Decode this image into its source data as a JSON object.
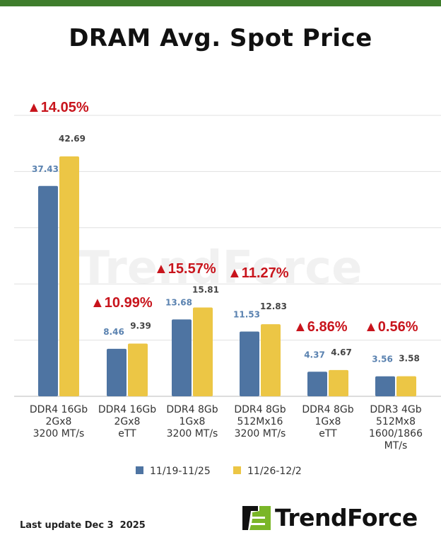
{
  "title": "DRAM Avg. Spot Price",
  "footer": "Last update Dec 3  2025",
  "brand": "TrendForce",
  "colors": {
    "series1": "#4e74a2",
    "series2": "#ecc645",
    "change": "#c8141c",
    "topbar": "#3f7d2c",
    "value1": "#5a82b0",
    "value2": "#444444"
  },
  "chart_data": {
    "type": "bar",
    "categories": [
      [
        "DDR4 16Gb",
        "2Gx8",
        "3200 MT/s"
      ],
      [
        "DDR4 16Gb",
        "2Gx8",
        "eTT"
      ],
      [
        "DDR4 8Gb",
        "1Gx8",
        "3200 MT/s"
      ],
      [
        "DDR4 8Gb",
        "512Mx16",
        "3200 MT/s"
      ],
      [
        "DDR4 8Gb",
        "1Gx8",
        "eTT"
      ],
      [
        "DDR3 4Gb",
        "512Mx8",
        "1600/1866",
        "MT/s"
      ]
    ],
    "series": [
      {
        "name": "11/19-11/25",
        "values": [
          37.43,
          8.46,
          13.68,
          11.53,
          4.37,
          3.56
        ],
        "labels": [
          "37.43",
          "8.46",
          "13.68",
          "11.53",
          "4.37",
          "3.56"
        ]
      },
      {
        "name": "11/26-12/2",
        "values": [
          42.69,
          9.39,
          15.81,
          12.83,
          4.67,
          3.58
        ],
        "labels": [
          "42.69",
          "9.39",
          "15.81",
          "12.83",
          "4.67",
          "3.58"
        ]
      }
    ],
    "changes": [
      "▲14.05%",
      "▲10.99%",
      "▲15.57%",
      "▲11.27%",
      "▲6.86%",
      "▲0.56%"
    ],
    "ylim": [
      0,
      50
    ],
    "yticks": [
      0,
      10,
      20,
      30,
      40,
      50
    ],
    "grid": true,
    "legend": "bottom",
    "watermark": "TrendForce"
  }
}
